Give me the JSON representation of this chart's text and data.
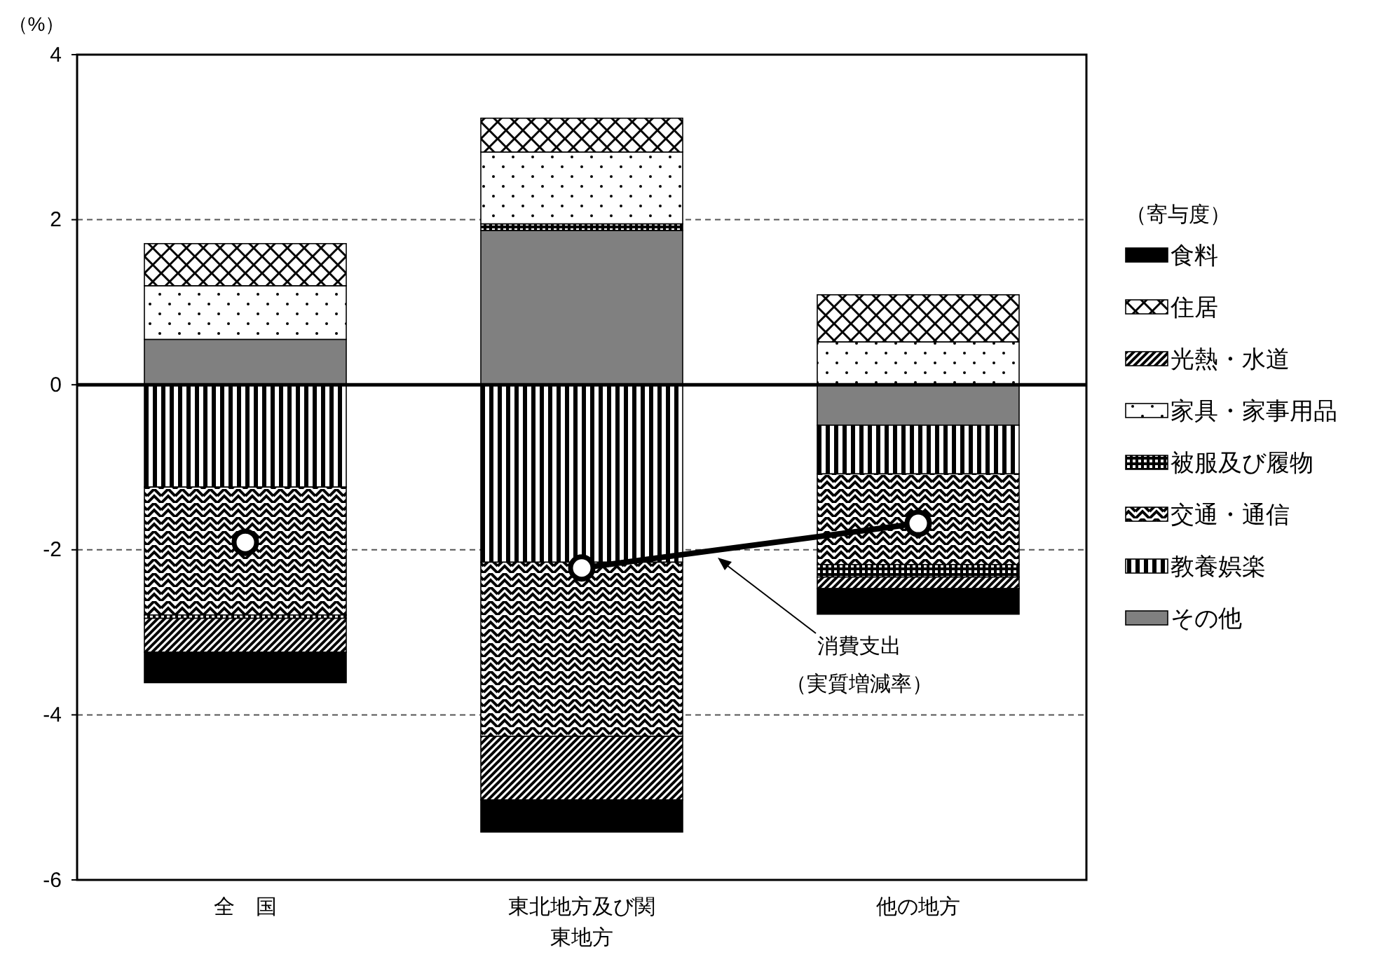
{
  "chart_data": {
    "type": "bar",
    "stacked": true,
    "ylabel": "（%）",
    "legend_title": "（寄与度）",
    "legend": "right",
    "grid": "y",
    "marker": "circle",
    "categories": [
      "全　国",
      "東北地方及び関東地方",
      "他の地方"
    ],
    "ylim": [
      -6,
      4
    ],
    "yticks": [
      -6,
      -4,
      -2,
      0,
      2,
      4
    ],
    "annotations": [
      "消費支出（実質増減率）"
    ],
    "series": [
      {
        "name": "その他",
        "color": "#808080",
        "values": [
          0.55,
          1.87,
          -0.49
        ]
      },
      {
        "name": "教養娯楽",
        "color": "#000000",
        "values": [
          -1.24,
          -2.15,
          -0.59
        ]
      },
      {
        "name": "交通・通信",
        "color": "#000000",
        "values": [
          -1.55,
          -2.11,
          -1.1
        ]
      },
      {
        "name": "被服及び履物",
        "color": "#000000",
        "values": [
          -0.04,
          0.08,
          -0.15
        ]
      },
      {
        "name": "家具・家事用品",
        "color": "#000000",
        "values": [
          0.65,
          0.87,
          0.52
        ]
      },
      {
        "name": "光熱・水道",
        "color": "#000000",
        "values": [
          -0.41,
          -0.77,
          -0.14
        ]
      },
      {
        "name": "住居",
        "color": "#000000",
        "values": [
          0.51,
          0.41,
          0.57
        ]
      },
      {
        "name": "食料",
        "color": "#000000",
        "values": [
          -0.37,
          -0.39,
          -0.31
        ]
      },
      {
        "type": "scatter",
        "color": "#000000",
        "values": [
          -1.91,
          null,
          null
        ]
      },
      {
        "type": "line",
        "color": "#000000",
        "values": [
          null,
          -2.22,
          -1.68
        ]
      }
    ]
  }
}
